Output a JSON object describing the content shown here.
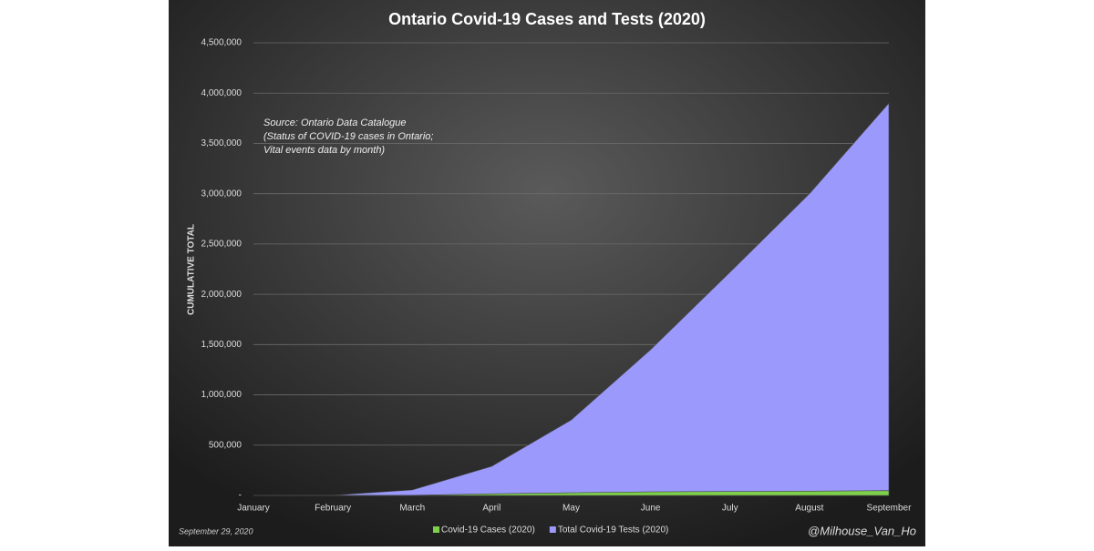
{
  "chart_data": {
    "type": "area",
    "title": "Ontario Covid-19 Cases and Tests (2020)",
    "y_label": "CUMULATIVE TOTAL",
    "annotation": [
      "Source: Ontario Data Catalogue",
      "(Status of COVID-19 cases in Ontario;",
      "Vital events data by month)"
    ],
    "date_note": "September 29, 2020",
    "credit": "@Milhouse_Van_Ho",
    "categories": [
      "January",
      "February",
      "March",
      "April",
      "May",
      "June",
      "July",
      "August",
      "September"
    ],
    "series": [
      {
        "name": "Covid-19 Cases (2020)",
        "color": "#7ed04b",
        "values": [
          0,
          0,
          1700,
          16000,
          27000,
          36000,
          39000,
          42000,
          48000
        ]
      },
      {
        "name": "Total Covid-19 Tests (2020)",
        "color": "#9b99fb",
        "values": [
          0,
          2000,
          55000,
          290000,
          750000,
          1450000,
          2220000,
          3000000,
          3900000
        ]
      }
    ],
    "ylim": [
      0,
      4500000
    ],
    "yticks": [
      {
        "value": 0,
        "label": "-"
      },
      {
        "value": 500000,
        "label": "500,000"
      },
      {
        "value": 1000000,
        "label": "1,000,000"
      },
      {
        "value": 1500000,
        "label": "1,500,000"
      },
      {
        "value": 2000000,
        "label": "2,000,000"
      },
      {
        "value": 2500000,
        "label": "2,500,000"
      },
      {
        "value": 3000000,
        "label": "3,000,000"
      },
      {
        "value": 3500000,
        "label": "3,500,000"
      },
      {
        "value": 4000000,
        "label": "4,000,000"
      },
      {
        "value": 4500000,
        "label": "4,500,000"
      }
    ],
    "grid": true
  }
}
